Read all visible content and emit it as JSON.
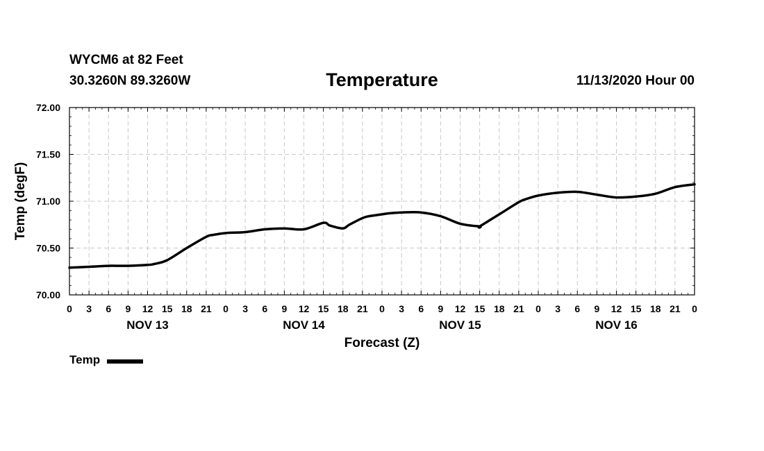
{
  "header": {
    "station": "WYCM6 at 82 Feet",
    "coords": "30.3260N 89.3260W",
    "title": "Temperature",
    "run_time": "11/13/2020 Hour 00"
  },
  "legend": {
    "label": "Temp"
  },
  "chart_data": {
    "type": "line",
    "title": "Temperature",
    "xlabel": "Forecast (Z)",
    "ylabel": "Temp (degF)",
    "ylim": [
      70.0,
      72.0
    ],
    "y_ticks": [
      "70.00",
      "70.50",
      "71.00",
      "71.50",
      "72.00"
    ],
    "x_range_hours": [
      0,
      96
    ],
    "x_tick_labels": [
      "0",
      "3",
      "6",
      "9",
      "12",
      "15",
      "18",
      "21",
      "0",
      "3",
      "6",
      "9",
      "12",
      "15",
      "18",
      "21",
      "0",
      "3",
      "6",
      "9",
      "12",
      "15",
      "18",
      "21",
      "0",
      "3",
      "6",
      "9",
      "12",
      "15",
      "18",
      "21",
      "0"
    ],
    "day_labels": [
      "NOV 13",
      "NOV 14",
      "NOV 15",
      "NOV 16"
    ],
    "grid": true,
    "legend_position": "bottom-left",
    "series": [
      {
        "name": "Temp",
        "color": "#000000",
        "x": [
          0,
          3,
          6,
          9,
          12,
          13,
          15,
          18,
          21,
          22,
          24,
          27,
          30,
          33,
          36,
          39,
          40,
          42,
          43,
          45,
          46,
          48,
          49,
          51,
          54,
          57,
          60,
          63,
          63,
          66,
          69,
          70,
          72,
          75,
          78,
          81,
          84,
          87,
          90,
          93,
          96
        ],
        "y": [
          70.29,
          70.3,
          70.31,
          70.31,
          70.32,
          70.33,
          70.37,
          70.5,
          70.62,
          70.64,
          70.66,
          70.67,
          70.7,
          70.71,
          70.7,
          70.77,
          70.74,
          70.71,
          70.75,
          70.82,
          70.84,
          70.86,
          70.87,
          70.88,
          70.88,
          70.84,
          70.76,
          70.73,
          70.73,
          70.86,
          70.99,
          71.02,
          71.06,
          71.09,
          71.1,
          71.07,
          71.04,
          71.05,
          71.08,
          71.15,
          71.18
        ]
      }
    ]
  }
}
